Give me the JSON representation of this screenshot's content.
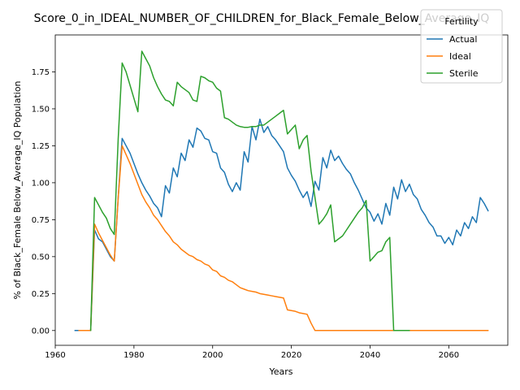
{
  "chart_data": {
    "type": "line",
    "title": "Score_0_in_IDEAL_NUMBER_OF_CHILDREN_for_Black_Female_Below_Average_IQ",
    "xlabel": "Years",
    "ylabel": "% of Black_Female Below_Average_IQ Population",
    "xlim": [
      1960,
      2075
    ],
    "ylim": [
      -0.1,
      2.0
    ],
    "xticks": [
      1960,
      1980,
      2000,
      2020,
      2040,
      2060
    ],
    "yticks": [
      0.0,
      0.25,
      0.5,
      0.75,
      1.0,
      1.25,
      1.5,
      1.75
    ],
    "grid": false,
    "legend": {
      "title": "Fertility",
      "placement": "top-right"
    },
    "series": [
      {
        "name": "Actual",
        "color": "#1f77b4",
        "points": [
          [
            1965,
            0.0
          ],
          [
            1966,
            0.0
          ],
          [
            1967,
            0.0
          ],
          [
            1968,
            0.0
          ],
          [
            1969,
            0.0
          ],
          [
            1970,
            0.68
          ],
          [
            1971,
            0.62
          ],
          [
            1972,
            0.6
          ],
          [
            1973,
            0.55
          ],
          [
            1974,
            0.5
          ],
          [
            1975,
            0.47
          ],
          [
            1976,
            0.9
          ],
          [
            1977,
            1.3
          ],
          [
            1978,
            1.25
          ],
          [
            1979,
            1.2
          ],
          [
            1980,
            1.13
          ],
          [
            1981,
            1.06
          ],
          [
            1982,
            1.0
          ],
          [
            1983,
            0.95
          ],
          [
            1984,
            0.91
          ],
          [
            1985,
            0.86
          ],
          [
            1986,
            0.83
          ],
          [
            1987,
            0.77
          ],
          [
            1988,
            0.98
          ],
          [
            1989,
            0.93
          ],
          [
            1990,
            1.1
          ],
          [
            1991,
            1.04
          ],
          [
            1992,
            1.2
          ],
          [
            1993,
            1.15
          ],
          [
            1994,
            1.29
          ],
          [
            1995,
            1.24
          ],
          [
            1996,
            1.37
          ],
          [
            1997,
            1.35
          ],
          [
            1998,
            1.3
          ],
          [
            1999,
            1.29
          ],
          [
            2000,
            1.21
          ],
          [
            2001,
            1.2
          ],
          [
            2002,
            1.1
          ],
          [
            2003,
            1.07
          ],
          [
            2004,
            0.99
          ],
          [
            2005,
            0.94
          ],
          [
            2006,
            1.0
          ],
          [
            2007,
            0.95
          ],
          [
            2008,
            1.21
          ],
          [
            2009,
            1.14
          ],
          [
            2010,
            1.38
          ],
          [
            2011,
            1.29
          ],
          [
            2012,
            1.43
          ],
          [
            2013,
            1.34
          ],
          [
            2014,
            1.38
          ],
          [
            2015,
            1.32
          ],
          [
            2016,
            1.29
          ],
          [
            2017,
            1.25
          ],
          [
            2018,
            1.21
          ],
          [
            2019,
            1.1
          ],
          [
            2020,
            1.05
          ],
          [
            2021,
            1.01
          ],
          [
            2022,
            0.95
          ],
          [
            2023,
            0.9
          ],
          [
            2024,
            0.94
          ],
          [
            2025,
            0.84
          ],
          [
            2026,
            1.01
          ],
          [
            2027,
            0.95
          ],
          [
            2028,
            1.17
          ],
          [
            2029,
            1.1
          ],
          [
            2030,
            1.22
          ],
          [
            2031,
            1.15
          ],
          [
            2032,
            1.18
          ],
          [
            2033,
            1.13
          ],
          [
            2034,
            1.09
          ],
          [
            2035,
            1.06
          ],
          [
            2036,
            1.0
          ],
          [
            2037,
            0.95
          ],
          [
            2038,
            0.89
          ],
          [
            2039,
            0.83
          ],
          [
            2040,
            0.8
          ],
          [
            2041,
            0.74
          ],
          [
            2042,
            0.79
          ],
          [
            2043,
            0.72
          ],
          [
            2044,
            0.86
          ],
          [
            2045,
            0.78
          ],
          [
            2046,
            0.97
          ],
          [
            2047,
            0.89
          ],
          [
            2048,
            1.02
          ],
          [
            2049,
            0.94
          ],
          [
            2050,
            0.99
          ],
          [
            2051,
            0.92
          ],
          [
            2052,
            0.89
          ],
          [
            2053,
            0.82
          ],
          [
            2054,
            0.78
          ],
          [
            2055,
            0.73
          ],
          [
            2056,
            0.7
          ],
          [
            2057,
            0.64
          ],
          [
            2058,
            0.64
          ],
          [
            2059,
            0.59
          ],
          [
            2060,
            0.63
          ],
          [
            2061,
            0.58
          ],
          [
            2062,
            0.68
          ],
          [
            2063,
            0.64
          ],
          [
            2064,
            0.73
          ],
          [
            2065,
            0.69
          ],
          [
            2066,
            0.77
          ],
          [
            2067,
            0.73
          ],
          [
            2068,
            0.9
          ],
          [
            2069,
            0.86
          ],
          [
            2070,
            0.81
          ]
        ]
      },
      {
        "name": "Ideal",
        "color": "#ff7f0e",
        "points": [
          [
            1966,
            0.0
          ],
          [
            1967,
            0.0
          ],
          [
            1968,
            0.0
          ],
          [
            1969,
            0.0
          ],
          [
            1970,
            0.72
          ],
          [
            1971,
            0.66
          ],
          [
            1972,
            0.61
          ],
          [
            1973,
            0.56
          ],
          [
            1974,
            0.51
          ],
          [
            1975,
            0.47
          ],
          [
            1976,
            0.9
          ],
          [
            1977,
            1.25
          ],
          [
            1978,
            1.19
          ],
          [
            1979,
            1.13
          ],
          [
            1980,
            1.06
          ],
          [
            1981,
            0.99
          ],
          [
            1982,
            0.92
          ],
          [
            1983,
            0.87
          ],
          [
            1984,
            0.83
          ],
          [
            1985,
            0.78
          ],
          [
            1986,
            0.75
          ],
          [
            1987,
            0.71
          ],
          [
            1988,
            0.67
          ],
          [
            1989,
            0.64
          ],
          [
            1990,
            0.6
          ],
          [
            1991,
            0.58
          ],
          [
            1992,
            0.55
          ],
          [
            1993,
            0.53
          ],
          [
            1994,
            0.51
          ],
          [
            1995,
            0.5
          ],
          [
            1996,
            0.48
          ],
          [
            1997,
            0.47
          ],
          [
            1998,
            0.45
          ],
          [
            1999,
            0.44
          ],
          [
            2000,
            0.41
          ],
          [
            2001,
            0.4
          ],
          [
            2002,
            0.37
          ],
          [
            2003,
            0.36
          ],
          [
            2004,
            0.34
          ],
          [
            2005,
            0.33
          ],
          [
            2006,
            0.31
          ],
          [
            2007,
            0.29
          ],
          [
            2008,
            0.28
          ],
          [
            2009,
            0.27
          ],
          [
            2010,
            0.265
          ],
          [
            2011,
            0.26
          ],
          [
            2012,
            0.25
          ],
          [
            2013,
            0.245
          ],
          [
            2014,
            0.24
          ],
          [
            2015,
            0.235
          ],
          [
            2016,
            0.23
          ],
          [
            2017,
            0.225
          ],
          [
            2018,
            0.22
          ],
          [
            2019,
            0.14
          ],
          [
            2020,
            0.135
          ],
          [
            2021,
            0.13
          ],
          [
            2022,
            0.12
          ],
          [
            2023,
            0.115
          ],
          [
            2024,
            0.11
          ],
          [
            2025,
            0.05
          ],
          [
            2026,
            0.0
          ],
          [
            2030,
            0.0
          ],
          [
            2040,
            0.0
          ],
          [
            2050,
            0.0
          ],
          [
            2060,
            0.0
          ],
          [
            2070,
            0.0
          ]
        ]
      },
      {
        "name": "Sterile",
        "color": "#2ca02c",
        "points": [
          [
            1969,
            0.0
          ],
          [
            1970,
            0.9
          ],
          [
            1971,
            0.85
          ],
          [
            1972,
            0.8
          ],
          [
            1973,
            0.76
          ],
          [
            1974,
            0.69
          ],
          [
            1975,
            0.65
          ],
          [
            1976,
            1.3
          ],
          [
            1977,
            1.81
          ],
          [
            1978,
            1.75
          ],
          [
            1979,
            1.66
          ],
          [
            1980,
            1.57
          ],
          [
            1981,
            1.48
          ],
          [
            1982,
            1.89
          ],
          [
            1983,
            1.84
          ],
          [
            1984,
            1.79
          ],
          [
            1985,
            1.71
          ],
          [
            1986,
            1.65
          ],
          [
            1987,
            1.6
          ],
          [
            1988,
            1.56
          ],
          [
            1989,
            1.55
          ],
          [
            1990,
            1.52
          ],
          [
            1991,
            1.68
          ],
          [
            1992,
            1.65
          ],
          [
            1993,
            1.63
          ],
          [
            1994,
            1.61
          ],
          [
            1995,
            1.56
          ],
          [
            1996,
            1.55
          ],
          [
            1997,
            1.72
          ],
          [
            1998,
            1.71
          ],
          [
            1999,
            1.69
          ],
          [
            2000,
            1.68
          ],
          [
            2001,
            1.64
          ],
          [
            2002,
            1.62
          ],
          [
            2003,
            1.44
          ],
          [
            2004,
            1.43
          ],
          [
            2005,
            1.41
          ],
          [
            2006,
            1.39
          ],
          [
            2007,
            1.38
          ],
          [
            2008,
            1.375
          ],
          [
            2009,
            1.375
          ],
          [
            2010,
            1.38
          ],
          [
            2011,
            1.38
          ],
          [
            2012,
            1.39
          ],
          [
            2013,
            1.39
          ],
          [
            2014,
            1.41
          ],
          [
            2015,
            1.43
          ],
          [
            2016,
            1.45
          ],
          [
            2017,
            1.47
          ],
          [
            2018,
            1.49
          ],
          [
            2019,
            1.33
          ],
          [
            2020,
            1.36
          ],
          [
            2021,
            1.39
          ],
          [
            2022,
            1.23
          ],
          [
            2023,
            1.29
          ],
          [
            2024,
            1.32
          ],
          [
            2025,
            1.08
          ],
          [
            2026,
            0.9
          ],
          [
            2027,
            0.72
          ],
          [
            2028,
            0.75
          ],
          [
            2029,
            0.79
          ],
          [
            2030,
            0.85
          ],
          [
            2031,
            0.6
          ],
          [
            2032,
            0.62
          ],
          [
            2033,
            0.64
          ],
          [
            2034,
            0.68
          ],
          [
            2035,
            0.72
          ],
          [
            2036,
            0.76
          ],
          [
            2037,
            0.8
          ],
          [
            2038,
            0.83
          ],
          [
            2039,
            0.88
          ],
          [
            2040,
            0.47
          ],
          [
            2041,
            0.5
          ],
          [
            2042,
            0.53
          ],
          [
            2043,
            0.54
          ],
          [
            2044,
            0.6
          ],
          [
            2045,
            0.63
          ],
          [
            2046,
            0.0
          ],
          [
            2047,
            0.0
          ],
          [
            2048,
            0.0
          ],
          [
            2049,
            0.0
          ],
          [
            2050,
            0.0
          ]
        ]
      }
    ]
  }
}
